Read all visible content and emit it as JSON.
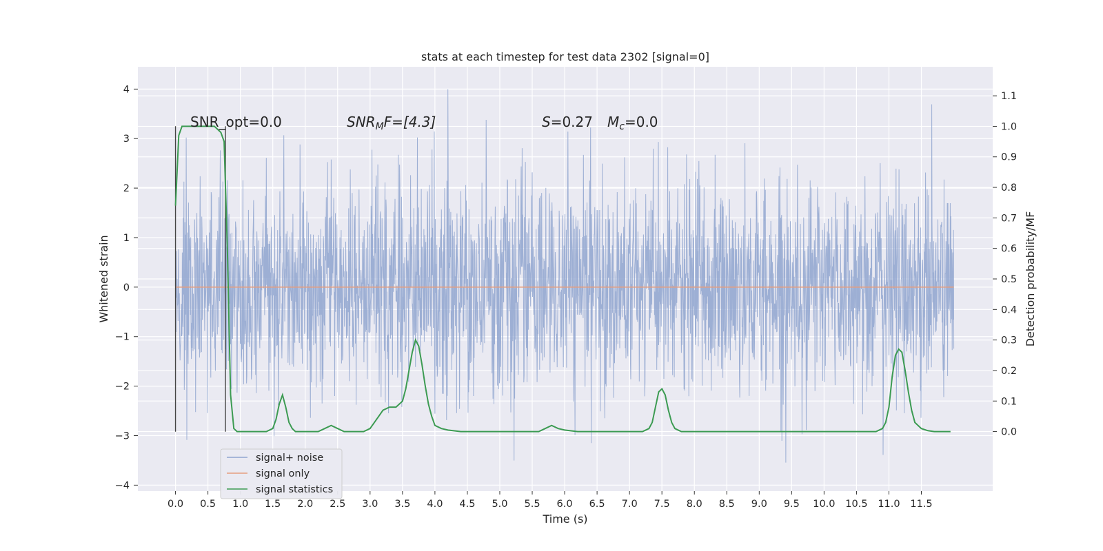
{
  "chart_data": {
    "type": "line",
    "title": "stats at each timestep for test data 2302 [signal=0]",
    "xlabel": "Time (s)",
    "ylabel_left": "Whitened strain",
    "ylabel_right": "Detection probability/MF",
    "xlim": [
      -0.58,
      12.6
    ],
    "ylim_left": [
      -4.12,
      4.45
    ],
    "ylim_right": [
      -0.195,
      1.195
    ],
    "x_ticks": [
      "0.0",
      "0.5",
      "1.0",
      "1.5",
      "2.0",
      "2.5",
      "3.0",
      "3.5",
      "4.0",
      "4.5",
      "5.0",
      "5.5",
      "6.0",
      "6.5",
      "7.0",
      "7.5",
      "8.0",
      "8.5",
      "9.0",
      "9.5",
      "10.0",
      "10.5",
      "11.0",
      "11.5"
    ],
    "y_left_ticks": [
      "4",
      "3",
      "2",
      "1",
      "0",
      "−1",
      "−2",
      "−3",
      "−4"
    ],
    "y_right_ticks": [
      "1.1",
      "1.0",
      "0.9",
      "0.8",
      "0.7",
      "0.6",
      "0.5",
      "0.4",
      "0.3",
      "0.2",
      "0.1",
      "0.0"
    ],
    "grid": true,
    "legend_position": "lower-left",
    "annotations": {
      "snr_opt": "SNR_opt=0.0",
      "snr_mf_prefix": "SNR",
      "snr_mf_sub": "M",
      "snr_mf_suffix": "F=[4.3]",
      "s_var": "S",
      "s_value": "=0.27",
      "mc_var": "M",
      "mc_sub": "c",
      "mc_value": "=0.0"
    },
    "vertical_markers": [
      0.0,
      0.77
    ],
    "series": [
      {
        "name": "signal+ noise",
        "color": "#8fa5cf",
        "description_range": [
          -4.0,
          4.1
        ],
        "t_end": 12.0
      },
      {
        "name": "signal only",
        "color": "#e69e7e",
        "constant_value": 0.0
      },
      {
        "name": "signal statistics",
        "color": "#3c9b52",
        "x": [
          0.0,
          0.05,
          0.1,
          0.15,
          0.2,
          0.3,
          0.4,
          0.5,
          0.6,
          0.7,
          0.75,
          0.8,
          0.85,
          0.9,
          0.95,
          1.0,
          1.1,
          1.2,
          1.3,
          1.4,
          1.5,
          1.55,
          1.6,
          1.65,
          1.7,
          1.75,
          1.8,
          1.85,
          1.9,
          2.0,
          2.2,
          2.3,
          2.4,
          2.5,
          2.6,
          2.7,
          2.8,
          2.9,
          3.0,
          3.1,
          3.2,
          3.3,
          3.4,
          3.5,
          3.55,
          3.6,
          3.65,
          3.7,
          3.75,
          3.8,
          3.85,
          3.9,
          3.95,
          4.0,
          4.1,
          4.2,
          4.4,
          4.6,
          5.0,
          5.4,
          5.6,
          5.7,
          5.8,
          5.9,
          6.0,
          6.2,
          6.5,
          7.0,
          7.2,
          7.3,
          7.35,
          7.4,
          7.45,
          7.5,
          7.55,
          7.6,
          7.65,
          7.7,
          7.8,
          8.0,
          8.5,
          9.0,
          9.5,
          10.0,
          10.5,
          10.8,
          10.9,
          10.95,
          11.0,
          11.05,
          11.1,
          11.15,
          11.2,
          11.25,
          11.3,
          11.35,
          11.4,
          11.5,
          11.6,
          11.7,
          11.8,
          11.9,
          11.95
        ],
        "y": [
          0.74,
          0.97,
          1.0,
          1.0,
          1.0,
          1.0,
          1.0,
          1.0,
          1.0,
          0.98,
          0.95,
          0.6,
          0.12,
          0.01,
          0.0,
          0.0,
          0.0,
          0.0,
          0.0,
          0.0,
          0.01,
          0.04,
          0.09,
          0.12,
          0.08,
          0.03,
          0.01,
          0.0,
          0.0,
          0.0,
          0.0,
          0.01,
          0.02,
          0.01,
          0.0,
          0.0,
          0.0,
          0.0,
          0.01,
          0.04,
          0.07,
          0.08,
          0.08,
          0.1,
          0.14,
          0.2,
          0.26,
          0.3,
          0.28,
          0.22,
          0.15,
          0.09,
          0.05,
          0.02,
          0.01,
          0.005,
          0.0,
          0.0,
          0.0,
          0.0,
          0.0,
          0.01,
          0.02,
          0.01,
          0.005,
          0.0,
          0.0,
          0.0,
          0.0,
          0.01,
          0.03,
          0.08,
          0.13,
          0.14,
          0.12,
          0.07,
          0.03,
          0.01,
          0.0,
          0.0,
          0.0,
          0.0,
          0.0,
          0.0,
          0.0,
          0.0,
          0.01,
          0.03,
          0.08,
          0.18,
          0.25,
          0.27,
          0.26,
          0.2,
          0.13,
          0.07,
          0.03,
          0.01,
          0.003,
          0.0,
          0.0,
          0.0,
          0.0
        ]
      }
    ]
  }
}
